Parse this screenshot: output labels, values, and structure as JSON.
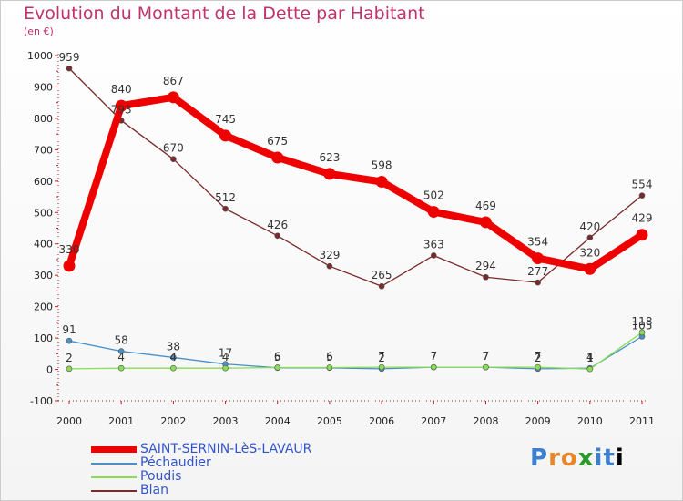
{
  "chart_data": {
    "type": "line",
    "title": "Evolution du Montant de la Dette par Habitant",
    "subtitle": "(en €)",
    "categories": [
      "2000",
      "2001",
      "2002",
      "2003",
      "2004",
      "2005",
      "2006",
      "2007",
      "2008",
      "2009",
      "2010",
      "2011"
    ],
    "ylim": [
      -100,
      1000
    ],
    "yticks": [
      -100,
      0,
      100,
      200,
      300,
      400,
      500,
      600,
      700,
      800,
      900,
      1000
    ],
    "grid": false,
    "legend_position": "bottom-left",
    "series": [
      {
        "name": "Blan",
        "color": "#7a2a2a",
        "values": [
          959,
          793,
          670,
          512,
          426,
          329,
          265,
          363,
          294,
          277,
          420,
          554
        ],
        "labels": [
          "959",
          "793",
          "670",
          "512",
          "426",
          "329",
          "265",
          "363",
          "294",
          "277",
          "420",
          "554"
        ]
      },
      {
        "name": "Péchaudier",
        "color": "#4a90c8",
        "values": [
          91,
          58,
          38,
          17,
          5,
          5,
          2,
          7,
          7,
          2,
          4,
          105
        ],
        "labels": [
          "91",
          "58",
          "38",
          "17",
          "5",
          "5",
          "2",
          "7",
          "7",
          "2",
          "4",
          "105"
        ]
      },
      {
        "name": "Poudis",
        "color": "#88dd55",
        "values": [
          2,
          4,
          4,
          4,
          6,
          6,
          7,
          7,
          7,
          7,
          1,
          118
        ],
        "labels": [
          "2",
          "4",
          "4",
          "4",
          "6",
          "6",
          "7",
          "7",
          "7",
          "7",
          "1",
          "118"
        ]
      },
      {
        "name": "SAINT-SERNIN-LèS-LAVAUR",
        "color": "#ee0000",
        "values": [
          330,
          840,
          867,
          745,
          675,
          623,
          598,
          502,
          469,
          354,
          320,
          429
        ],
        "labels": [
          "330",
          "840",
          "867",
          "745",
          "675",
          "623",
          "598",
          "502",
          "469",
          "354",
          "320",
          "429"
        ]
      }
    ],
    "legend": [
      "SAINT-SERNIN-LèS-LAVAUR",
      "Péchaudier",
      "Poudis",
      "Blan"
    ]
  },
  "logo": {
    "letters": [
      "P",
      "r",
      "o",
      "x",
      "i",
      "t",
      "i"
    ]
  }
}
